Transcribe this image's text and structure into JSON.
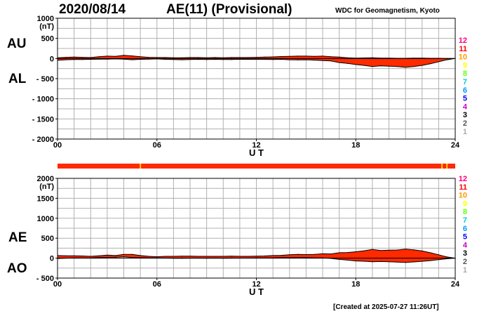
{
  "header": {
    "date": "2020/08/14",
    "title": "AE(11) (Provisional)",
    "attribution": "WDC for Geomagnetism, Kyoto"
  },
  "footer": {
    "created": "[Created at 2025-07-27 11:26UT]"
  },
  "chart_data": [
    {
      "type": "area",
      "name": "AU/AL",
      "unit": "(nT)",
      "ylim": [
        -2000,
        1000
      ],
      "yticks": [
        1000,
        500,
        0,
        -500,
        -1000,
        -1500,
        -2000
      ],
      "ytick_labels": [
        "1000",
        "500",
        "0",
        "- 500",
        "- 1000",
        "- 1500",
        "- 2000"
      ],
      "xlim": [
        0,
        24
      ],
      "xticks": [
        0,
        6,
        12,
        18,
        24
      ],
      "xtick_labels": [
        "00",
        "06",
        "12",
        "18",
        "24"
      ],
      "xlabel": "U T",
      "grid": true,
      "side_labels": {
        "upper": "AU",
        "lower": "AL"
      },
      "x": [
        0,
        0.5,
        1,
        1.5,
        2,
        2.5,
        3,
        3.5,
        4,
        4.5,
        5,
        5.5,
        6,
        6.5,
        7,
        7.5,
        8,
        8.5,
        9,
        9.5,
        10,
        10.5,
        11,
        11.5,
        12,
        12.5,
        13,
        13.5,
        14,
        14.5,
        15,
        15.5,
        16,
        16.5,
        17,
        17.5,
        18,
        18.5,
        19,
        19.5,
        20,
        20.5,
        21,
        21.5,
        22,
        22.5,
        23,
        23.5,
        24
      ],
      "series": [
        {
          "name": "AU",
          "values": [
            20,
            30,
            35,
            30,
            25,
            45,
            60,
            55,
            80,
            65,
            45,
            30,
            25,
            25,
            20,
            20,
            25,
            25,
            20,
            25,
            20,
            25,
            25,
            25,
            30,
            35,
            40,
            50,
            55,
            60,
            60,
            55,
            60,
            45,
            35,
            20,
            10,
            15,
            20,
            10,
            10,
            5,
            5,
            10,
            10,
            5,
            5,
            0,
            0
          ]
        },
        {
          "name": "AL",
          "values": [
            -45,
            -30,
            -25,
            -25,
            -20,
            -15,
            -15,
            -10,
            -15,
            -30,
            -20,
            -15,
            -10,
            -20,
            -25,
            -30,
            -25,
            -20,
            -25,
            -20,
            -25,
            -25,
            -20,
            -20,
            -20,
            -20,
            -25,
            -20,
            -30,
            -35,
            -30,
            -40,
            -50,
            -60,
            -100,
            -120,
            -150,
            -170,
            -200,
            -180,
            -190,
            -200,
            -220,
            -200,
            -170,
            -130,
            -80,
            -30,
            0
          ]
        }
      ]
    },
    {
      "type": "area",
      "name": "AE/AO",
      "unit": "(nT)",
      "ylim": [
        -500,
        2000
      ],
      "yticks": [
        2000,
        1500,
        1000,
        500,
        0,
        -500
      ],
      "ytick_labels": [
        "2000",
        "1500",
        "1000",
        "500",
        "0",
        "- 500"
      ],
      "xlim": [
        0,
        24
      ],
      "xticks": [
        0,
        6,
        12,
        18,
        24
      ],
      "xtick_labels": [
        "00",
        "06",
        "12",
        "18",
        "24"
      ],
      "xlabel": "U T",
      "grid": true,
      "side_labels": {
        "upper": "AE",
        "lower": "AO"
      },
      "x": [
        0,
        0.5,
        1,
        1.5,
        2,
        2.5,
        3,
        3.5,
        4,
        4.5,
        5,
        5.5,
        6,
        6.5,
        7,
        7.5,
        8,
        8.5,
        9,
        9.5,
        10,
        10.5,
        11,
        11.5,
        12,
        12.5,
        13,
        13.5,
        14,
        14.5,
        15,
        15.5,
        16,
        16.5,
        17,
        17.5,
        18,
        18.5,
        19,
        19.5,
        20,
        20.5,
        21,
        21.5,
        22,
        22.5,
        23,
        23.5,
        24
      ],
      "series": [
        {
          "name": "AE",
          "values": [
            65,
            60,
            60,
            55,
            45,
            60,
            75,
            65,
            95,
            95,
            65,
            45,
            35,
            45,
            45,
            50,
            50,
            45,
            45,
            45,
            45,
            50,
            45,
            45,
            50,
            55,
            65,
            70,
            85,
            95,
            90,
            95,
            110,
            105,
            135,
            140,
            160,
            185,
            220,
            190,
            200,
            205,
            225,
            210,
            180,
            135,
            85,
            30,
            0
          ]
        },
        {
          "name": "AO",
          "values": [
            -12,
            0,
            5,
            3,
            3,
            15,
            22,
            22,
            32,
            17,
            12,
            7,
            7,
            2,
            -2,
            -5,
            0,
            2,
            -2,
            2,
            -2,
            0,
            2,
            2,
            5,
            7,
            7,
            15,
            12,
            12,
            15,
            7,
            5,
            -7,
            -32,
            -50,
            -70,
            -78,
            -90,
            -85,
            -90,
            -98,
            -108,
            -95,
            -80,
            -62,
            -38,
            -15,
            0
          ]
        }
      ]
    }
  ],
  "activity_bar": {
    "base_color": "#ff2a00",
    "markers": [
      {
        "x": 5.0,
        "color": "#ffd000"
      },
      {
        "x": 23.2,
        "color": "#ffd000"
      },
      {
        "x": 23.5,
        "color": "#ffd000"
      }
    ]
  },
  "level_legend": {
    "labels": [
      "12",
      "11",
      "10",
      "9",
      "8",
      "7",
      "6",
      "5",
      "4",
      "3",
      "2",
      "1"
    ],
    "colors": [
      "#ff0080",
      "#ff0000",
      "#ff9900",
      "#ffff00",
      "#66ff00",
      "#00cccc",
      "#0099ff",
      "#0000ff",
      "#cc00cc",
      "#000000",
      "#555555",
      "#aaaaaa"
    ]
  },
  "colors": {
    "fill": "#ff2a00",
    "line": "#000000",
    "grid": "#b0b0b0"
  }
}
